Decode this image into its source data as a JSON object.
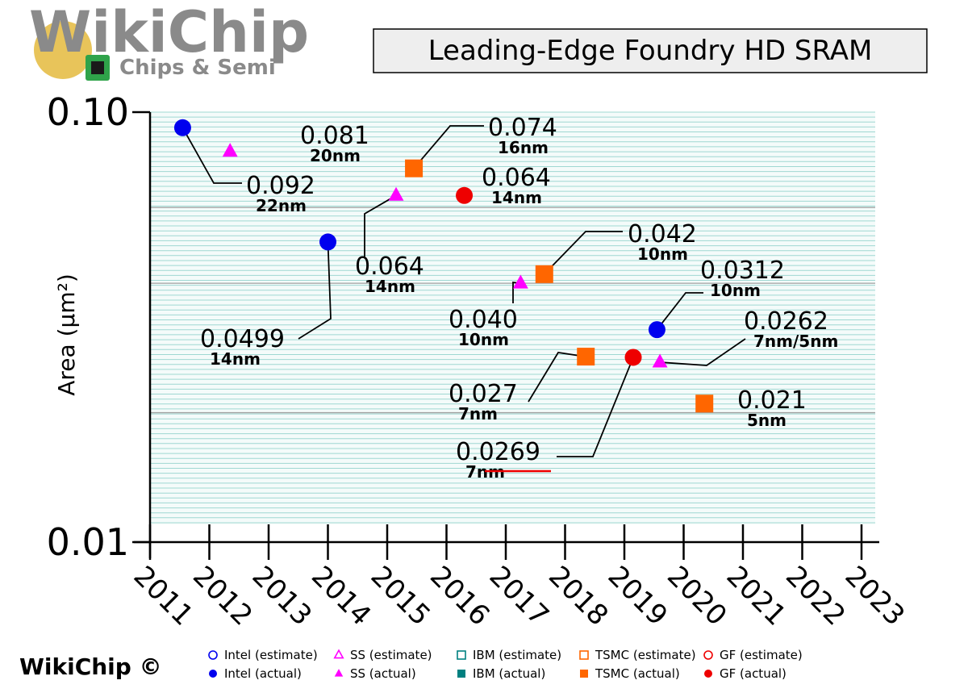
{
  "branding": {
    "logo_text": "WikiChip",
    "logo_sub": "Chips & Semi",
    "copyright": "WikiChip ©"
  },
  "chart_data": {
    "type": "scatter",
    "title": "Leading-Edge Foundry HD SRAM",
    "ylabel": "Area (μm²)",
    "xlabel": "",
    "y_scale": "log",
    "ylim": [
      0.01,
      0.1
    ],
    "xlim": [
      2011,
      2023
    ],
    "y_tick_labels": [
      "0.10",
      "0.01"
    ],
    "x_ticks": [
      2011,
      2012,
      2013,
      2014,
      2015,
      2016,
      2017,
      2018,
      2019,
      2020,
      2021,
      2022,
      2023
    ],
    "grid": "horizontal minor lines",
    "legend_position": "bottom",
    "points": [
      {
        "series": "Intel (actual)",
        "x": 2011.55,
        "y": 0.092,
        "value_label": "0.092",
        "node_label": "22nm"
      },
      {
        "series": "SS (actual)",
        "x": 2012.35,
        "y": 0.081,
        "value_label": "0.081",
        "node_label": "20nm"
      },
      {
        "series": "Intel (actual)",
        "x": 2014.0,
        "y": 0.0499,
        "value_label": "0.0499",
        "node_label": "14nm"
      },
      {
        "series": "SS (actual)",
        "x": 2015.15,
        "y": 0.064,
        "value_label": "0.064",
        "node_label": "14nm"
      },
      {
        "series": "TSMC (actual)",
        "x": 2015.45,
        "y": 0.074,
        "value_label": "0.074",
        "node_label": "16nm"
      },
      {
        "series": "GF (actual)",
        "x": 2016.3,
        "y": 0.064,
        "value_label": "0.064",
        "node_label": "14nm"
      },
      {
        "series": "SS (actual)",
        "x": 2017.25,
        "y": 0.04,
        "value_label": "0.040",
        "node_label": "10nm"
      },
      {
        "series": "TSMC (actual)",
        "x": 2017.65,
        "y": 0.042,
        "value_label": "0.042",
        "node_label": "10nm"
      },
      {
        "series": "TSMC (actual)",
        "x": 2018.35,
        "y": 0.027,
        "value_label": "0.027",
        "node_label": "7nm"
      },
      {
        "series": "GF (actual)",
        "x": 2019.15,
        "y": 0.0269,
        "value_label": "0.0269",
        "node_label": "7nm",
        "node_struck": true
      },
      {
        "series": "SS (actual)",
        "x": 2019.6,
        "y": 0.0262,
        "value_label": "0.0262",
        "node_label": "7nm/5nm"
      },
      {
        "series": "Intel (actual)",
        "x": 2019.55,
        "y": 0.0312,
        "value_label": "0.0312",
        "node_label": "10nm"
      },
      {
        "series": "TSMC (actual)",
        "x": 2020.35,
        "y": 0.021,
        "value_label": "0.021",
        "node_label": "5nm"
      }
    ],
    "legend": [
      {
        "label": "Intel (estimate)",
        "marker": "circle",
        "filled": false,
        "color": "#0000ee"
      },
      {
        "label": "SS (estimate)",
        "marker": "triangle",
        "filled": false,
        "color": "#ff00ff"
      },
      {
        "label": "IBM (estimate)",
        "marker": "square",
        "filled": false,
        "color": "#008080"
      },
      {
        "label": "TSMC (estimate)",
        "marker": "square",
        "filled": false,
        "color": "#ff6600"
      },
      {
        "label": "GF (estimate)",
        "marker": "circle",
        "filled": false,
        "color": "#ee0000"
      },
      {
        "label": "Intel (actual)",
        "marker": "circle",
        "filled": true,
        "color": "#0000ee"
      },
      {
        "label": "SS (actual)",
        "marker": "triangle",
        "filled": true,
        "color": "#ff00ff"
      },
      {
        "label": "IBM (actual)",
        "marker": "square",
        "filled": true,
        "color": "#008080"
      },
      {
        "label": "TSMC (actual)",
        "marker": "square",
        "filled": true,
        "color": "#ff6600"
      },
      {
        "label": "GF (actual)",
        "marker": "circle",
        "filled": true,
        "color": "#ee0000"
      }
    ],
    "colors": {
      "grid": "#9fd8d2",
      "major_grid": "#a0a0a0",
      "axis": "#000000",
      "struck_line": "#ee0000"
    }
  }
}
